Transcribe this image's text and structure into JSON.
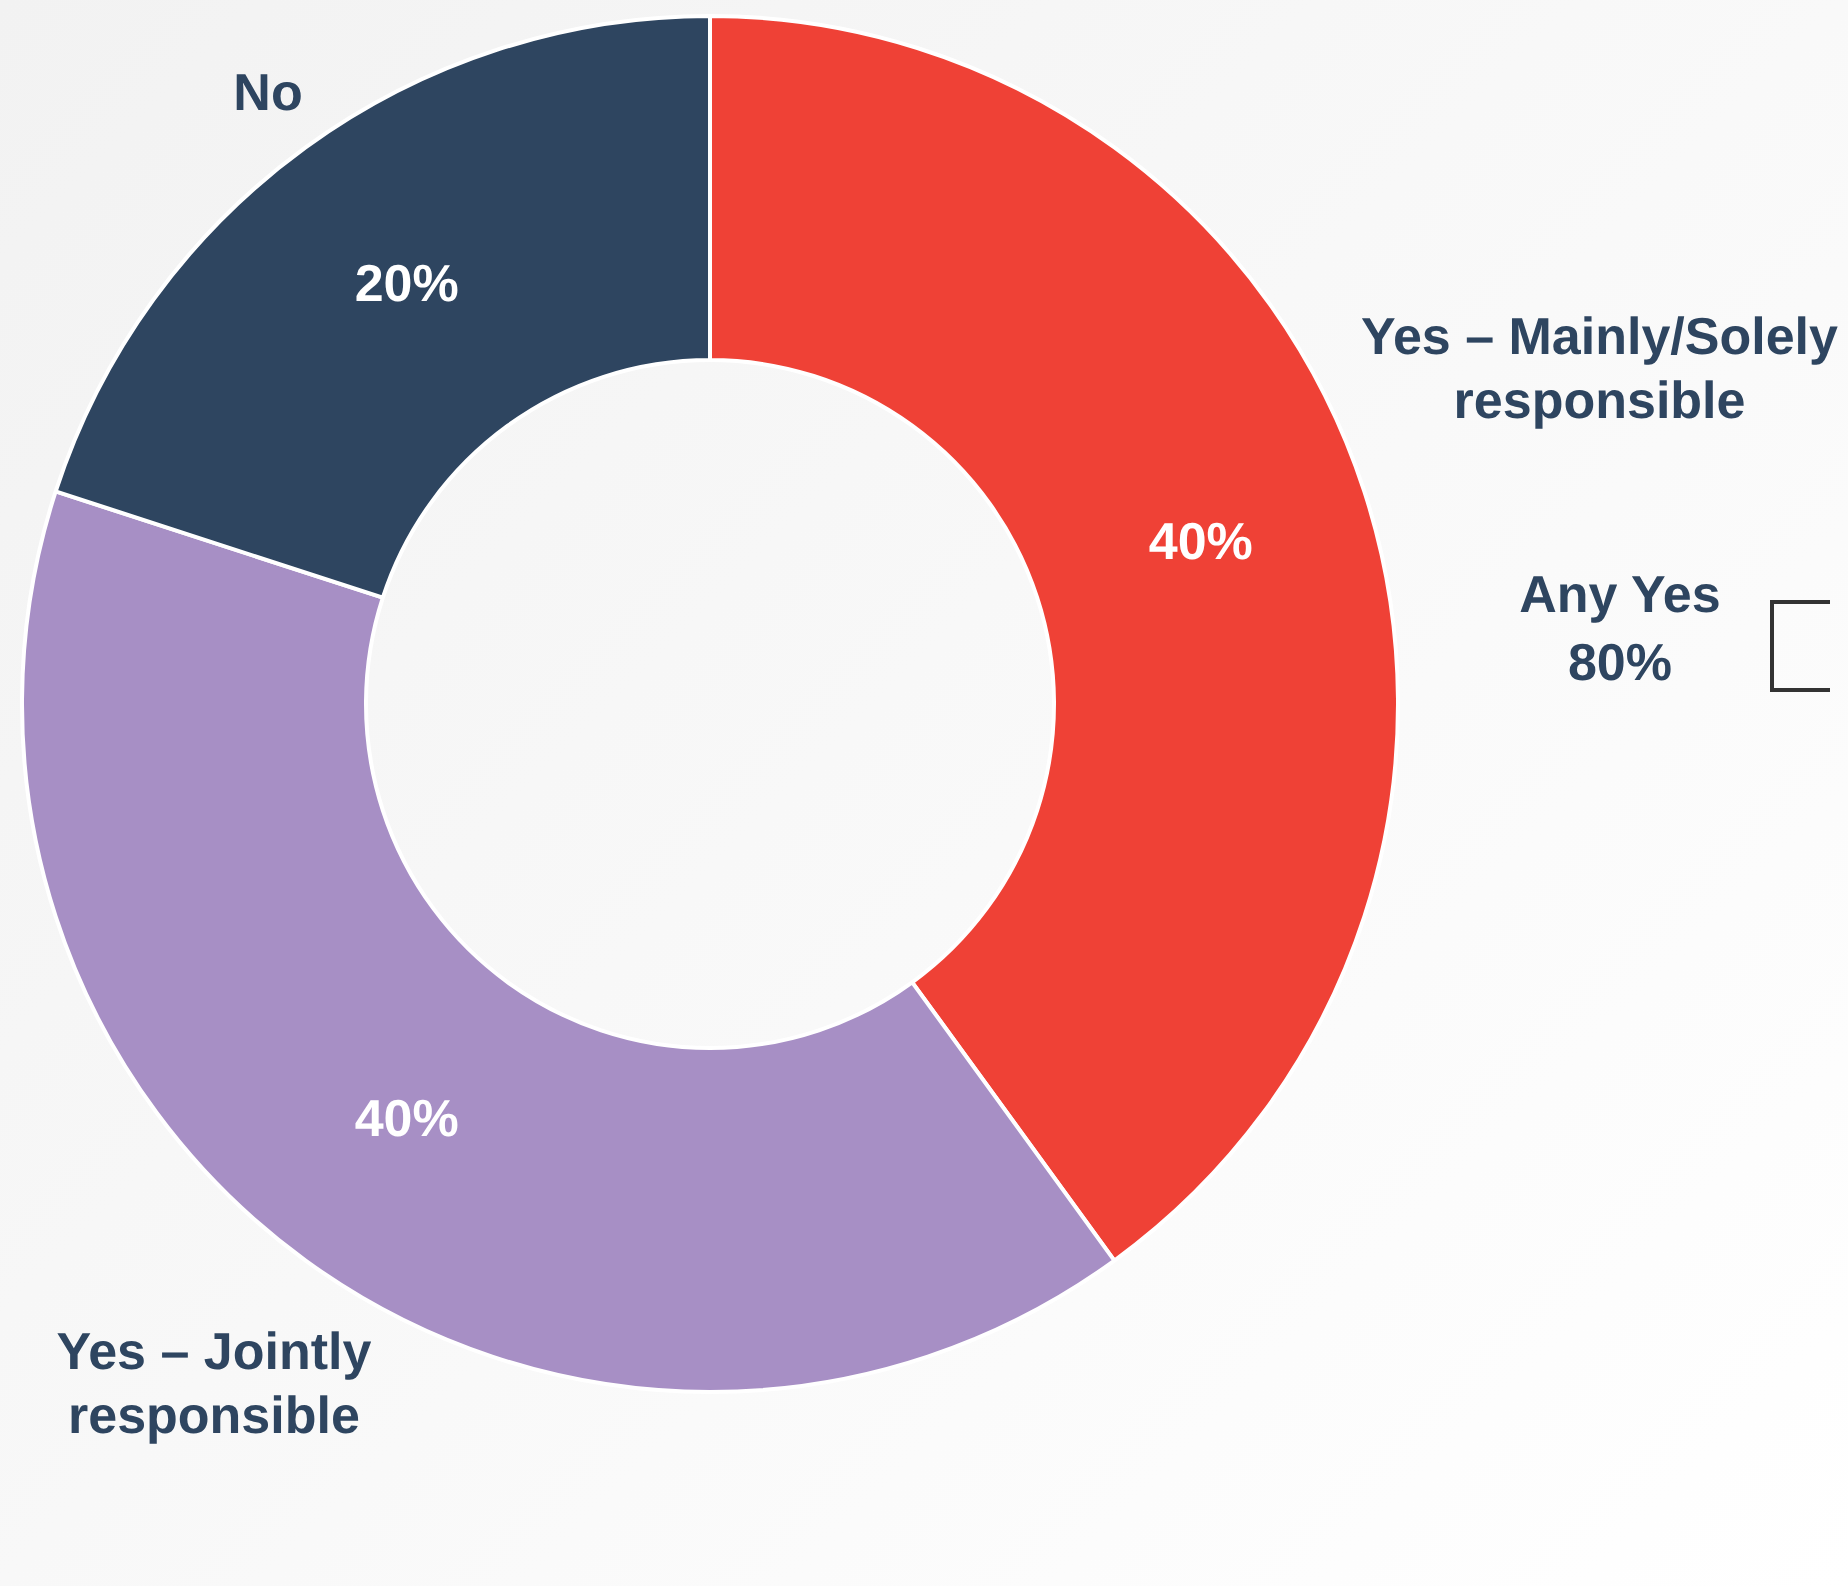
{
  "chart_data": {
    "type": "donut",
    "categories": [
      "Yes – Mainly/Solely responsible",
      "Yes – Jointly responsible",
      "No"
    ],
    "values": [
      40,
      40,
      20
    ],
    "colors": [
      "#ef4136",
      "#a78fc5",
      "#2e4560"
    ],
    "value_labels": [
      "40%",
      "40%",
      "20%"
    ],
    "legend": false,
    "annotations": [
      "Any Yes 80%"
    ]
  }
}
